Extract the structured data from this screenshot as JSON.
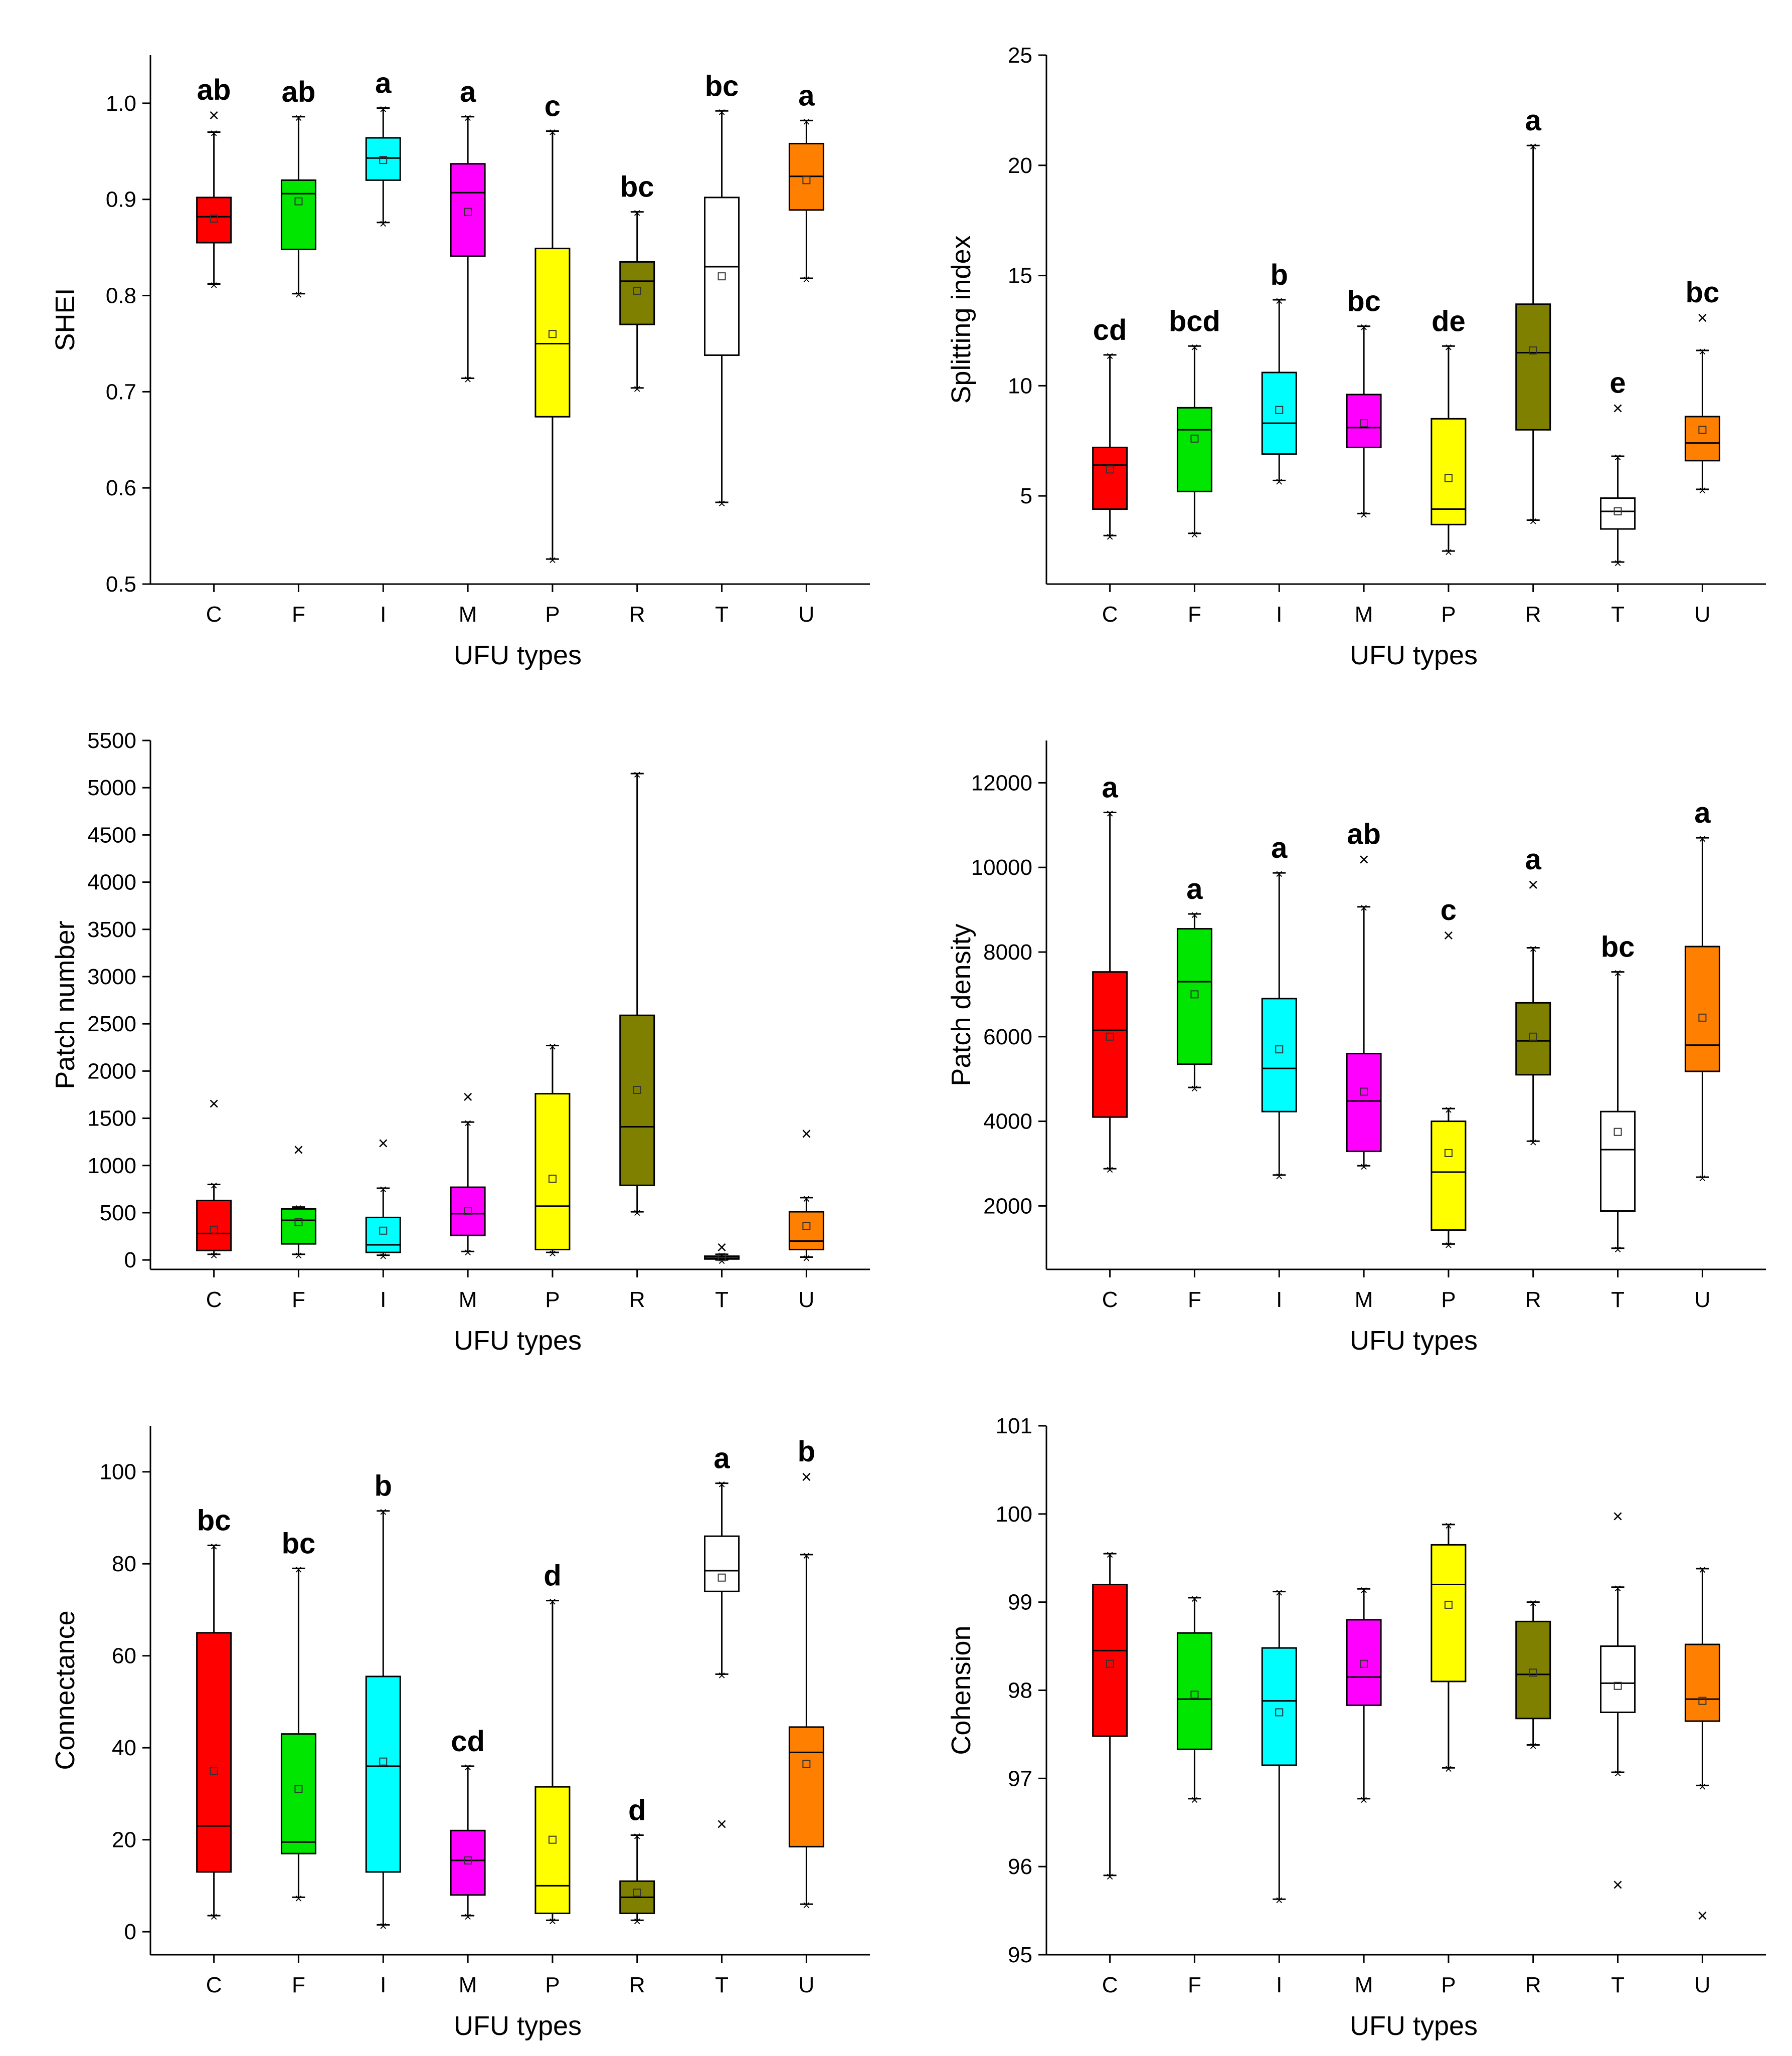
{
  "chart_data": [
    {
      "type": "boxplot",
      "panel_id": "shei",
      "title": "",
      "xlabel": "UFU types",
      "ylabel": "SHEI",
      "ylim": [
        0.5,
        1.05
      ],
      "yticks": [
        "0.5",
        "0.6",
        "0.7",
        "0.8",
        "0.9",
        "1.0"
      ],
      "categories": [
        "C",
        "F",
        "I",
        "M",
        "P",
        "R",
        "T",
        "U"
      ],
      "colors": [
        "#ff0000",
        "#00e600",
        "#00ffff",
        "#ff00ff",
        "#ffff00",
        "#808000",
        "#ffffff",
        "#ff8000"
      ],
      "boxes": [
        {
          "min": 0.812,
          "q1": 0.855,
          "median": 0.882,
          "q3": 0.902,
          "max": 0.97,
          "mean": 0.88,
          "outliers": [
            0.988
          ]
        },
        {
          "min": 0.802,
          "q1": 0.848,
          "median": 0.906,
          "q3": 0.92,
          "max": 0.986,
          "mean": 0.898,
          "outliers": []
        },
        {
          "min": 0.876,
          "q1": 0.92,
          "median": 0.943,
          "q3": 0.964,
          "max": 0.995,
          "mean": 0.941,
          "outliers": []
        },
        {
          "min": 0.714,
          "q1": 0.841,
          "median": 0.907,
          "q3": 0.937,
          "max": 0.986,
          "mean": 0.887,
          "outliers": []
        },
        {
          "min": 0.526,
          "q1": 0.674,
          "median": 0.75,
          "q3": 0.849,
          "max": 0.971,
          "mean": 0.76,
          "outliers": []
        },
        {
          "min": 0.704,
          "q1": 0.77,
          "median": 0.815,
          "q3": 0.835,
          "max": 0.887,
          "mean": 0.805,
          "outliers": []
        },
        {
          "min": 0.585,
          "q1": 0.738,
          "median": 0.83,
          "q3": 0.902,
          "max": 0.992,
          "mean": 0.82,
          "outliers": []
        },
        {
          "min": 0.818,
          "q1": 0.889,
          "median": 0.924,
          "q3": 0.958,
          "max": 0.982,
          "mean": 0.92,
          "outliers": []
        }
      ],
      "letters": [
        "ab",
        "ab",
        "a",
        "a",
        "c",
        "bc",
        "bc",
        "a"
      ]
    },
    {
      "type": "boxplot",
      "panel_id": "splitting",
      "title": "",
      "xlabel": "UFU types",
      "ylabel": "Splitting index",
      "ylim": [
        1,
        25
      ],
      "yticks": [
        "5",
        "10",
        "15",
        "20",
        "25"
      ],
      "categories": [
        "C",
        "F",
        "I",
        "M",
        "P",
        "R",
        "T",
        "U"
      ],
      "colors": [
        "#ff0000",
        "#00e600",
        "#00ffff",
        "#ff00ff",
        "#ffff00",
        "#808000",
        "#ffffff",
        "#ff8000"
      ],
      "boxes": [
        {
          "min": 3.2,
          "q1": 4.4,
          "median": 6.4,
          "q3": 7.2,
          "max": 11.4,
          "mean": 6.2,
          "outliers": []
        },
        {
          "min": 3.3,
          "q1": 5.2,
          "median": 8.0,
          "q3": 9.0,
          "max": 11.8,
          "mean": 7.6,
          "outliers": []
        },
        {
          "min": 5.7,
          "q1": 6.9,
          "median": 8.3,
          "q3": 10.6,
          "max": 13.9,
          "mean": 8.9,
          "outliers": []
        },
        {
          "min": 4.2,
          "q1": 7.2,
          "median": 8.1,
          "q3": 9.6,
          "max": 12.7,
          "mean": 8.3,
          "outliers": []
        },
        {
          "min": 2.5,
          "q1": 3.7,
          "median": 4.4,
          "q3": 8.5,
          "max": 11.8,
          "mean": 5.8,
          "outliers": []
        },
        {
          "min": 3.9,
          "q1": 8.0,
          "median": 11.5,
          "q3": 13.7,
          "max": 20.9,
          "mean": 11.6,
          "outliers": []
        },
        {
          "min": 2.0,
          "q1": 3.5,
          "median": 4.3,
          "q3": 4.9,
          "max": 6.8,
          "mean": 4.3,
          "outliers": [
            9.0
          ]
        },
        {
          "min": 5.3,
          "q1": 6.6,
          "median": 7.4,
          "q3": 8.6,
          "max": 11.6,
          "mean": 8.0,
          "outliers": [
            13.1
          ]
        }
      ],
      "letters": [
        "cd",
        "bcd",
        "b",
        "bc",
        "de",
        "a",
        "e",
        "bc"
      ]
    },
    {
      "type": "boxplot",
      "panel_id": "patch-number",
      "title": "",
      "xlabel": "UFU types",
      "ylabel": "Patch number",
      "ylim": [
        -100,
        5500
      ],
      "yticks": [
        "0",
        "500",
        "1000",
        "1500",
        "2000",
        "2500",
        "3000",
        "3500",
        "4000",
        "4500",
        "5000",
        "5500"
      ],
      "categories": [
        "C",
        "F",
        "I",
        "M",
        "P",
        "R",
        "T",
        "U"
      ],
      "colors": [
        "#ff0000",
        "#00e600",
        "#00ffff",
        "#ff00ff",
        "#ffff00",
        "#808000",
        "#ffffff",
        "#ff8000"
      ],
      "boxes": [
        {
          "min": 60,
          "q1": 100,
          "median": 280,
          "q3": 630,
          "max": 800,
          "mean": 320,
          "outliers": [
            1660
          ]
        },
        {
          "min": 60,
          "q1": 170,
          "median": 420,
          "q3": 540,
          "max": 560,
          "mean": 400,
          "outliers": [
            1170
          ]
        },
        {
          "min": 50,
          "q1": 80,
          "median": 160,
          "q3": 450,
          "max": 760,
          "mean": 310,
          "outliers": [
            1240
          ]
        },
        {
          "min": 90,
          "q1": 260,
          "median": 490,
          "q3": 770,
          "max": 1460,
          "mean": 520,
          "outliers": [
            1730
          ]
        },
        {
          "min": 80,
          "q1": 110,
          "median": 570,
          "q3": 1760,
          "max": 2270,
          "mean": 860,
          "outliers": []
        },
        {
          "min": 510,
          "q1": 790,
          "median": 1410,
          "q3": 2590,
          "max": 5150,
          "mean": 1800,
          "outliers": []
        },
        {
          "min": 0,
          "q1": 10,
          "median": 20,
          "q3": 40,
          "max": 60,
          "mean": 30,
          "outliers": [
            140
          ]
        },
        {
          "min": 30,
          "q1": 110,
          "median": 200,
          "q3": 510,
          "max": 660,
          "mean": 360,
          "outliers": [
            1340
          ]
        }
      ],
      "letters": []
    },
    {
      "type": "boxplot",
      "panel_id": "patch-density",
      "title": "",
      "xlabel": "UFU types",
      "ylabel": "Patch density",
      "ylim": [
        500,
        13000
      ],
      "yticks": [
        "2000",
        "4000",
        "6000",
        "8000",
        "10000",
        "12000"
      ],
      "categories": [
        "C",
        "F",
        "I",
        "M",
        "P",
        "R",
        "T",
        "U"
      ],
      "colors": [
        "#ff0000",
        "#00e600",
        "#00ffff",
        "#ff00ff",
        "#ffff00",
        "#808000",
        "#ffffff",
        "#ff8000"
      ],
      "boxes": [
        {
          "min": 2880,
          "q1": 4100,
          "median": 6150,
          "q3": 7530,
          "max": 11300,
          "mean": 6000,
          "outliers": []
        },
        {
          "min": 4800,
          "q1": 5350,
          "median": 7300,
          "q3": 8550,
          "max": 8900,
          "mean": 7000,
          "outliers": []
        },
        {
          "min": 2730,
          "q1": 4230,
          "median": 5250,
          "q3": 6900,
          "max": 9870,
          "mean": 5700,
          "outliers": []
        },
        {
          "min": 2950,
          "q1": 3290,
          "median": 4480,
          "q3": 5600,
          "max": 9070,
          "mean": 4700,
          "outliers": [
            10200
          ]
        },
        {
          "min": 1100,
          "q1": 1430,
          "median": 2800,
          "q3": 4000,
          "max": 4300,
          "mean": 3250,
          "outliers": [
            8400
          ]
        },
        {
          "min": 3530,
          "q1": 5100,
          "median": 5900,
          "q3": 6800,
          "max": 8100,
          "mean": 6000,
          "outliers": [
            9600
          ]
        },
        {
          "min": 1000,
          "q1": 1880,
          "median": 3330,
          "q3": 4230,
          "max": 7530,
          "mean": 3750,
          "outliers": []
        },
        {
          "min": 2680,
          "q1": 5180,
          "median": 5800,
          "q3": 8130,
          "max": 10700,
          "mean": 6450,
          "outliers": []
        }
      ],
      "letters": [
        "a",
        "a",
        "a",
        "ab",
        "c",
        "a",
        "bc",
        "a"
      ]
    },
    {
      "type": "boxplot",
      "panel_id": "connectance",
      "title": "",
      "xlabel": "UFU types",
      "ylabel": "Connectance",
      "ylim": [
        -5,
        110
      ],
      "yticks": [
        "0",
        "20",
        "40",
        "60",
        "80",
        "100"
      ],
      "categories": [
        "C",
        "F",
        "I",
        "M",
        "P",
        "R",
        "T",
        "U"
      ],
      "colors": [
        "#ff0000",
        "#00e600",
        "#00ffff",
        "#ff00ff",
        "#ffff00",
        "#808000",
        "#ffffff",
        "#ff8000"
      ],
      "boxes": [
        {
          "min": 3.5,
          "q1": 13,
          "median": 23,
          "q3": 65,
          "max": 84,
          "mean": 35,
          "outliers": []
        },
        {
          "min": 7.5,
          "q1": 17,
          "median": 19.5,
          "q3": 43,
          "max": 79,
          "mean": 31,
          "outliers": []
        },
        {
          "min": 1.5,
          "q1": 13,
          "median": 36,
          "q3": 55.5,
          "max": 91.5,
          "mean": 37,
          "outliers": []
        },
        {
          "min": 3.5,
          "q1": 8,
          "median": 15.5,
          "q3": 22,
          "max": 36,
          "mean": 15.5,
          "outliers": []
        },
        {
          "min": 2.5,
          "q1": 4,
          "median": 10,
          "q3": 31.5,
          "max": 72,
          "mean": 20,
          "outliers": []
        },
        {
          "min": 2.5,
          "q1": 4,
          "median": 7.5,
          "q3": 11,
          "max": 21,
          "mean": 8.5,
          "outliers": []
        },
        {
          "min": 56,
          "q1": 74,
          "median": 78.5,
          "q3": 86,
          "max": 97.5,
          "mean": 77,
          "outliers": [
            23.5
          ]
        },
        {
          "min": 6,
          "q1": 18.5,
          "median": 39,
          "q3": 44.5,
          "max": 82,
          "mean": 36.5,
          "outliers": [
            99
          ]
        }
      ],
      "letters": [
        "bc",
        "bc",
        "b",
        "cd",
        "d",
        "d",
        "a",
        "b"
      ]
    },
    {
      "type": "boxplot",
      "panel_id": "cohesion",
      "title": "",
      "xlabel": "UFU types",
      "ylabel": "Cohension",
      "ylim": [
        95,
        101
      ],
      "yticks": [
        "95",
        "96",
        "97",
        "98",
        "99",
        "100",
        "101"
      ],
      "categories": [
        "C",
        "F",
        "I",
        "M",
        "P",
        "R",
        "T",
        "U"
      ],
      "colors": [
        "#ff0000",
        "#00e600",
        "#00ffff",
        "#ff00ff",
        "#ffff00",
        "#808000",
        "#ffffff",
        "#ff8000"
      ],
      "boxes": [
        {
          "min": 95.9,
          "q1": 97.48,
          "median": 98.45,
          "q3": 99.2,
          "max": 99.55,
          "mean": 98.3,
          "outliers": []
        },
        {
          "min": 96.77,
          "q1": 97.33,
          "median": 97.9,
          "q3": 98.65,
          "max": 99.05,
          "mean": 97.95,
          "outliers": []
        },
        {
          "min": 95.63,
          "q1": 97.15,
          "median": 97.88,
          "q3": 98.48,
          "max": 99.12,
          "mean": 97.75,
          "outliers": []
        },
        {
          "min": 96.77,
          "q1": 97.83,
          "median": 98.15,
          "q3": 98.8,
          "max": 99.15,
          "mean": 98.3,
          "outliers": []
        },
        {
          "min": 97.12,
          "q1": 98.1,
          "median": 99.2,
          "q3": 99.65,
          "max": 99.88,
          "mean": 98.97,
          "outliers": []
        },
        {
          "min": 97.38,
          "q1": 97.68,
          "median": 98.18,
          "q3": 98.78,
          "max": 99.0,
          "mean": 98.2,
          "outliers": []
        },
        {
          "min": 97.07,
          "q1": 97.75,
          "median": 98.08,
          "q3": 98.5,
          "max": 99.17,
          "mean": 98.05,
          "outliers": [
            99.98,
            95.8
          ]
        },
        {
          "min": 96.92,
          "q1": 97.65,
          "median": 97.9,
          "q3": 98.52,
          "max": 99.38,
          "mean": 97.88,
          "outliers": [
            95.45
          ]
        }
      ],
      "letters": []
    }
  ]
}
